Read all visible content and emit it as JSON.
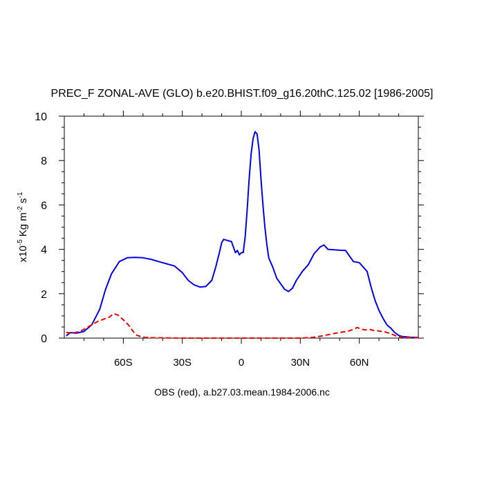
{
  "chart_data": {
    "type": "line",
    "title": "PREC_F ZONAL-AVE (GLO) b.e20.BHIST.f09_g16.20thC.125.02 [1986-2005]",
    "ylabel": {
      "prefix": "x10",
      "exp": "-5",
      "units": "Kg m",
      "units_exp": "-2",
      "units_tail": " s",
      "units_tail_exp": "-1"
    },
    "footer": "OBS (red), a.b27.03.mean.1984-2006.nc",
    "xlim": [
      -90,
      90
    ],
    "ylim": [
      0,
      10
    ],
    "x_ticks": [
      {
        "value": -60,
        "label": "60S"
      },
      {
        "value": -30,
        "label": "30S"
      },
      {
        "value": 0,
        "label": "0"
      },
      {
        "value": 30,
        "label": "30N"
      },
      {
        "value": 60,
        "label": "60N"
      }
    ],
    "y_ticks": [
      {
        "value": 0,
        "label": "0"
      },
      {
        "value": 2,
        "label": "2"
      },
      {
        "value": 4,
        "label": "4"
      },
      {
        "value": 6,
        "label": "6"
      },
      {
        "value": 8,
        "label": "8"
      },
      {
        "value": 10,
        "label": "10"
      }
    ],
    "series": [
      {
        "color": "#0000ee",
        "dash": "solid",
        "points": [
          [
            -89,
            0.1
          ],
          [
            -87,
            0.25
          ],
          [
            -84,
            0.22
          ],
          [
            -80,
            0.3
          ],
          [
            -76,
            0.6
          ],
          [
            -72,
            1.3
          ],
          [
            -69,
            2.2
          ],
          [
            -66,
            2.9
          ],
          [
            -62,
            3.45
          ],
          [
            -58,
            3.62
          ],
          [
            -54,
            3.64
          ],
          [
            -50,
            3.62
          ],
          [
            -46,
            3.55
          ],
          [
            -42,
            3.45
          ],
          [
            -38,
            3.35
          ],
          [
            -34,
            3.25
          ],
          [
            -30,
            2.95
          ],
          [
            -27,
            2.6
          ],
          [
            -24,
            2.4
          ],
          [
            -21,
            2.3
          ],
          [
            -18,
            2.33
          ],
          [
            -15,
            2.6
          ],
          [
            -13,
            3.2
          ],
          [
            -11,
            3.9
          ],
          [
            -10,
            4.3
          ],
          [
            -9,
            4.45
          ],
          [
            -7,
            4.4
          ],
          [
            -5,
            4.35
          ],
          [
            -4,
            4.1
          ],
          [
            -3,
            3.85
          ],
          [
            -2,
            3.95
          ],
          [
            -1,
            3.75
          ],
          [
            0,
            3.85
          ],
          [
            1,
            3.85
          ],
          [
            2,
            4.6
          ],
          [
            3,
            5.8
          ],
          [
            4,
            7.2
          ],
          [
            5,
            8.3
          ],
          [
            6,
            9.0
          ],
          [
            7,
            9.3
          ],
          [
            8,
            9.2
          ],
          [
            9,
            8.5
          ],
          [
            10,
            7.2
          ],
          [
            11,
            6.0
          ],
          [
            12,
            5.0
          ],
          [
            13,
            4.2
          ],
          [
            14,
            3.6
          ],
          [
            16,
            3.2
          ],
          [
            18,
            2.7
          ],
          [
            20,
            2.45
          ],
          [
            22,
            2.2
          ],
          [
            24,
            2.1
          ],
          [
            26,
            2.25
          ],
          [
            28,
            2.6
          ],
          [
            31,
            3.0
          ],
          [
            34,
            3.3
          ],
          [
            37,
            3.8
          ],
          [
            40,
            4.1
          ],
          [
            42,
            4.2
          ],
          [
            44,
            4.0
          ],
          [
            47,
            3.98
          ],
          [
            50,
            3.96
          ],
          [
            53,
            3.95
          ],
          [
            55,
            3.7
          ],
          [
            57,
            3.45
          ],
          [
            60,
            3.4
          ],
          [
            62,
            3.2
          ],
          [
            64,
            3.0
          ],
          [
            66,
            2.3
          ],
          [
            68,
            1.7
          ],
          [
            70,
            1.25
          ],
          [
            72,
            0.9
          ],
          [
            74,
            0.6
          ],
          [
            76,
            0.45
          ],
          [
            78,
            0.25
          ],
          [
            80,
            0.12
          ],
          [
            82,
            0.07
          ],
          [
            86,
            0.04
          ],
          [
            90,
            0.03
          ]
        ]
      },
      {
        "color": "#ee0000",
        "dash": "dashed",
        "points": [
          [
            -89,
            0.26
          ],
          [
            -86,
            0.22
          ],
          [
            -82,
            0.3
          ],
          [
            -79,
            0.45
          ],
          [
            -76,
            0.6
          ],
          [
            -73,
            0.75
          ],
          [
            -70,
            0.85
          ],
          [
            -67,
            0.95
          ],
          [
            -65,
            1.1
          ],
          [
            -63,
            1.05
          ],
          [
            -61,
            0.9
          ],
          [
            -59,
            0.75
          ],
          [
            -57,
            0.55
          ],
          [
            -55,
            0.3
          ],
          [
            -53,
            0.12
          ],
          [
            -50,
            0.04
          ],
          [
            -45,
            0.02
          ],
          [
            -30,
            0.0
          ],
          [
            0,
            0.0
          ],
          [
            30,
            0.0
          ],
          [
            36,
            0.03
          ],
          [
            40,
            0.08
          ],
          [
            44,
            0.15
          ],
          [
            48,
            0.22
          ],
          [
            52,
            0.28
          ],
          [
            55,
            0.33
          ],
          [
            57,
            0.4
          ],
          [
            59,
            0.48
          ],
          [
            61,
            0.4
          ],
          [
            63,
            0.37
          ],
          [
            65,
            0.4
          ],
          [
            67,
            0.35
          ],
          [
            70,
            0.32
          ],
          [
            73,
            0.28
          ],
          [
            76,
            0.2
          ],
          [
            78,
            0.12
          ],
          [
            80,
            0.06
          ],
          [
            84,
            0.03
          ],
          [
            90,
            0.02
          ]
        ]
      }
    ]
  }
}
